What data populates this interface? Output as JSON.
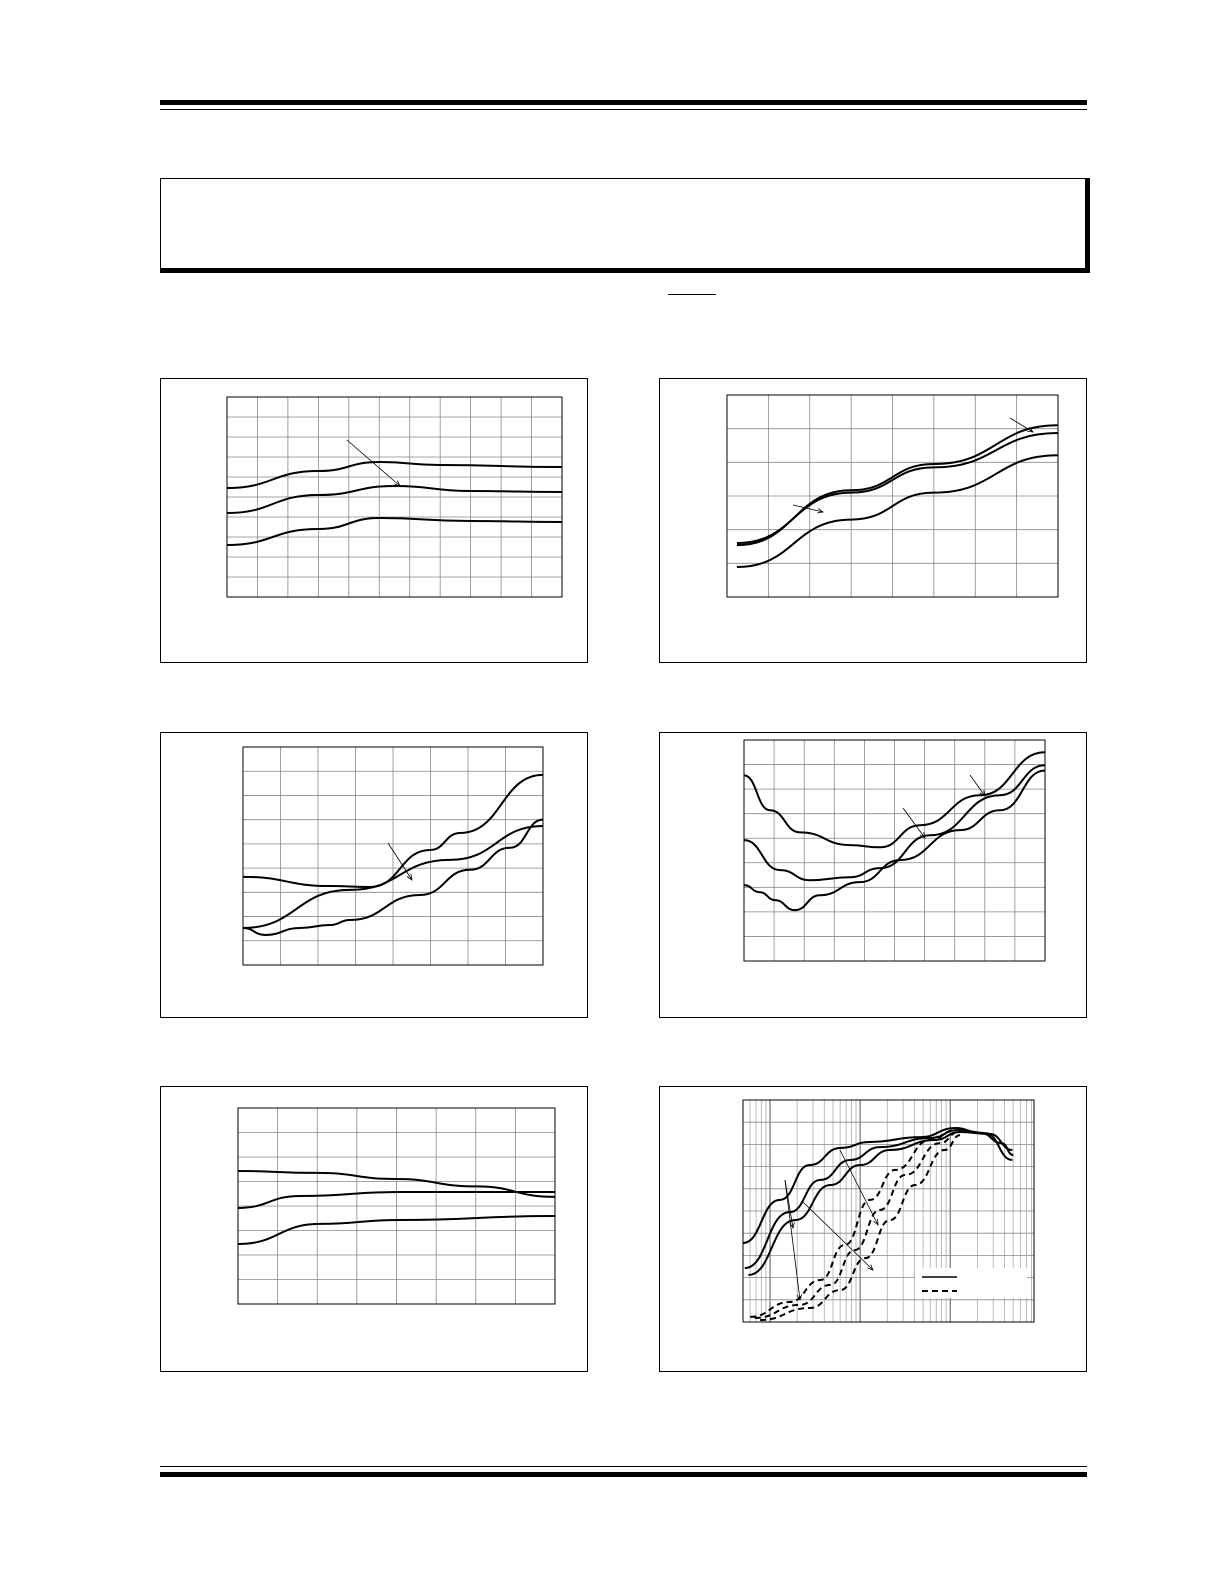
{
  "page": {
    "header_text": "",
    "footer_text": ""
  },
  "chart_data": [
    {
      "type": "line",
      "title": "",
      "xlabel": "",
      "ylabel": "",
      "xlim": [
        0,
        11
      ],
      "ylim": [
        0,
        10
      ],
      "grid": true,
      "series": [
        {
          "style": "solid",
          "x": [
            0,
            3,
            5,
            7,
            11
          ],
          "y": [
            5.45,
            6.3,
            6.75,
            6.6,
            6.5
          ]
        },
        {
          "style": "solid",
          "x": [
            0,
            3,
            5.5,
            8,
            11
          ],
          "y": [
            4.2,
            5.1,
            5.55,
            5.3,
            5.25
          ]
        },
        {
          "style": "solid",
          "x": [
            0,
            3,
            5,
            8,
            11
          ],
          "y": [
            2.6,
            3.4,
            3.95,
            3.8,
            3.75
          ]
        }
      ]
    },
    {
      "type": "line",
      "title": "",
      "xlabel": "",
      "ylabel": "",
      "xlim": [
        0,
        8
      ],
      "ylim": [
        0,
        6
      ],
      "grid": true,
      "series": [
        {
          "style": "solid",
          "x": [
            0.24,
            3,
            5,
            8
          ],
          "y": [
            1.54,
            3.17,
            3.95,
            5.1
          ]
        },
        {
          "style": "solid",
          "x": [
            0.24,
            3,
            5,
            8
          ],
          "y": [
            1.6,
            3.1,
            3.85,
            4.87
          ]
        },
        {
          "style": "solid",
          "x": [
            0.24,
            3,
            5,
            8
          ],
          "y": [
            0.89,
            2.3,
            3.1,
            4.21
          ]
        }
      ]
    },
    {
      "type": "line",
      "title": "",
      "xlabel": "",
      "ylabel": "",
      "xlim": [
        0,
        8
      ],
      "ylim": [
        0,
        9
      ],
      "grid": true,
      "series": [
        {
          "style": "solid",
          "x": [
            0,
            2.32,
            3.39,
            4.99,
            5.79,
            8
          ],
          "y": [
            3.64,
            3.26,
            3.22,
            4.75,
            5.45,
            7.85
          ]
        },
        {
          "style": "solid",
          "x": [
            0,
            2.85,
            5.52,
            8
          ],
          "y": [
            1.53,
            3.1,
            4.34,
            5.74
          ]
        },
        {
          "style": "solid",
          "x": [
            0,
            0.59,
            1.52,
            2.32,
            2.85,
            4.72,
            6.05,
            7.12,
            8
          ],
          "y": [
            1.53,
            1.24,
            1.53,
            1.65,
            1.86,
            2.89,
            3.93,
            4.84,
            6.0
          ]
        }
      ]
    },
    {
      "type": "line",
      "title": "",
      "xlabel": "",
      "ylabel": "",
      "xlim": [
        0,
        10
      ],
      "ylim": [
        0,
        9
      ],
      "grid": true,
      "series": [
        {
          "style": "solid",
          "x": [
            0,
            0.86,
            1.86,
            3.52,
            4.52,
            5.85,
            7.84,
            10
          ],
          "y": [
            7.56,
            6.14,
            5.24,
            4.72,
            4.63,
            5.53,
            6.75,
            8.5
          ]
        },
        {
          "style": "solid",
          "x": [
            0,
            1.2,
            2.19,
            3.52,
            4.52,
            6.18,
            8.5,
            10
          ],
          "y": [
            4.92,
            3.7,
            3.29,
            3.41,
            3.78,
            5.12,
            6.75,
            7.97
          ]
        },
        {
          "style": "solid",
          "x": [
            0,
            0.53,
            1.03,
            1.69,
            2.52,
            3.85,
            5.18,
            7.18,
            8.5,
            10
          ],
          "y": [
            3.09,
            2.8,
            2.48,
            2.07,
            2.68,
            3.21,
            4.11,
            5.33,
            6.14,
            7.76
          ]
        }
      ]
    },
    {
      "type": "line",
      "title": "",
      "xlabel": "",
      "ylabel": "",
      "xlim": [
        0,
        8
      ],
      "ylim": [
        0,
        8
      ],
      "grid": true,
      "series": [
        {
          "style": "solid",
          "x": [
            0,
            2,
            4,
            6,
            8
          ],
          "y": [
            5.43,
            5.35,
            5.1,
            4.8,
            4.37
          ]
        },
        {
          "style": "solid",
          "x": [
            0,
            1.57,
            4.09,
            8
          ],
          "y": [
            3.92,
            4.41,
            4.57,
            4.57
          ]
        },
        {
          "style": "solid",
          "x": [
            0,
            2.07,
            4.09,
            8
          ],
          "y": [
            2.45,
            3.27,
            3.43,
            3.59
          ]
        }
      ]
    },
    {
      "type": "line",
      "title": "",
      "xlabel": "",
      "ylabel": "",
      "x_scale": "log",
      "xlim_decades": [
        -0.3,
        2.93
      ],
      "ylim": [
        0,
        10
      ],
      "grid": true,
      "series": [
        {
          "style": "solid",
          "x": [
            -0.3,
            0.11,
            0.44,
            0.78,
            1.11,
            1.67,
            2.06,
            2.34,
            2.57,
            2.7
          ],
          "y": [
            3.56,
            5.5,
            7.07,
            7.84,
            8.11,
            8.33,
            8.74,
            8.51,
            8.06,
            7.52
          ]
        },
        {
          "style": "solid",
          "x": [
            -0.28,
            0.22,
            0.56,
            0.89,
            1.22,
            1.78,
            2.09,
            2.39,
            2.69
          ],
          "y": [
            2.43,
            4.95,
            6.4,
            7.3,
            7.88,
            8.29,
            8.65,
            8.51,
            7.3
          ]
        },
        {
          "style": "solid",
          "x": [
            -0.24,
            0.28,
            0.67,
            1.0,
            1.33,
            1.83,
            2.11,
            2.44,
            2.69
          ],
          "y": [
            2.12,
            4.59,
            6.17,
            7.07,
            7.75,
            8.2,
            8.56,
            8.47,
            7.75
          ]
        },
        {
          "style": "dashed",
          "x": [
            -0.22,
            0.22,
            0.56,
            0.83,
            1.11,
            1.39,
            1.78,
            2.06
          ],
          "y": [
            0.23,
            0.9,
            1.89,
            3.47,
            5.5,
            6.85,
            8.2,
            8.65
          ]
        },
        {
          "style": "dashed",
          "x": [
            -0.17,
            0.33,
            0.67,
            0.94,
            1.22,
            1.5,
            1.89,
            2.09
          ],
          "y": [
            0.18,
            0.77,
            1.67,
            3.24,
            5.05,
            6.62,
            8.06,
            8.56
          ]
        },
        {
          "style": "dashed",
          "x": [
            -0.11,
            0.44,
            0.78,
            1.06,
            1.33,
            1.61,
            1.94,
            2.11
          ],
          "y": [
            0.09,
            0.63,
            1.44,
            2.88,
            4.59,
            6.17,
            7.75,
            8.42
          ]
        }
      ],
      "legend": [
        {
          "style": "solid"
        },
        {
          "style": "dashed"
        }
      ]
    }
  ]
}
